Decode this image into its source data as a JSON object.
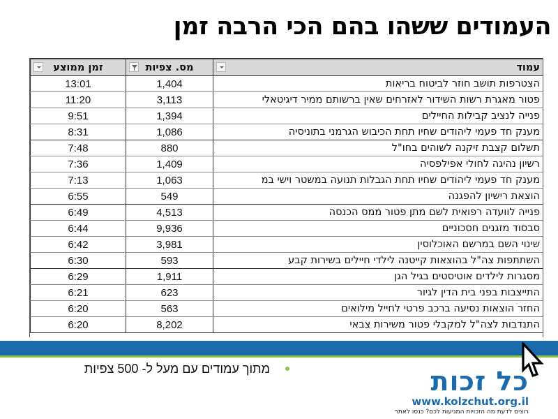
{
  "slide": {
    "title": "העמודים ששהו בהם הכי הרבה זמן"
  },
  "table": {
    "headers": {
      "page": "עמוד",
      "views": "מס. צפיות",
      "avg_time": "זמן ממוצע"
    },
    "rows": [
      {
        "page": "הצטרפות תושב חוזר לביטוח בריאות",
        "views": "1,404",
        "avg_time": "13:01"
      },
      {
        "page": "פטור מאגרת רשות השידור לאזרחים שאין ברשותם ממיר דיגיטאלי",
        "views": "3,113",
        "avg_time": "11:20"
      },
      {
        "page": "פנייה לנציב קבילות החיילים",
        "views": "1,394",
        "avg_time": "9:51"
      },
      {
        "page": "מענק חד פעמי ליהודים שחיו תחת הכיבוש הגרמני בתוניסיה",
        "views": "1,086",
        "avg_time": "8:31"
      },
      {
        "page": "תשלום קצבת זיקנה לשוהים בחו\"ל",
        "views": "880",
        "avg_time": "7:48"
      },
      {
        "page": "רשיון נהיגה לחולי אפילפסיה",
        "views": "1,409",
        "avg_time": "7:36"
      },
      {
        "page": "מענק חד פעמי ליהודים שחיו תחת הגבלות תנועה במשטר וישי במ",
        "views": "1,063",
        "avg_time": "7:13"
      },
      {
        "page": "הוצאת רישיון להפגנה",
        "views": "549",
        "avg_time": "6:55"
      },
      {
        "page": "פנייה לוועדה רפואית לשם מתן פטור ממס הכנסה",
        "views": "4,513",
        "avg_time": "6:49"
      },
      {
        "page": "סבסוד מזגנים חסכוניים",
        "views": "9,936",
        "avg_time": "6:44"
      },
      {
        "page": "שינוי השם במרשם האוכלוסין",
        "views": "3,981",
        "avg_time": "6:42"
      },
      {
        "page": "השתתפות צה\"ל בהוצאות קייטנה לילדי חיילים בשירות קבע",
        "views": "593",
        "avg_time": "6:30"
      },
      {
        "page": "מסגרות לילדים אוטיסטים בגיל הגן",
        "views": "1,911",
        "avg_time": "6:29"
      },
      {
        "page": "התייצבות בפני בית הדין לגיור",
        "views": "623",
        "avg_time": "6:21"
      },
      {
        "page": "החזר הוצאות נסיעה ברכב פרטי לחייל מילואים",
        "views": "563",
        "avg_time": "6:20"
      },
      {
        "page": "התנדבות לצה\"ל למקבלי פטור משירות צבאי",
        "views": "8,202",
        "avg_time": "6:20"
      }
    ]
  },
  "footer": {
    "bullet_text": "מתוך עמודים עם מעל ל- 500 צפיות",
    "logo_name": "כל זכות",
    "logo_url": "www.kolzchut.org.il",
    "logo_tagline": "רוצים לדעת מה הזכויות המגיעות לכם? כנסו לאתר"
  },
  "colors": {
    "band_blue": "#1a6aac",
    "accent_green": "#8cc63f",
    "header_gray": "#d9d9d9"
  },
  "icons": {
    "dropdown": "chevron-down-icon",
    "filter": "filter-icon",
    "cursor": "mouse-pointer-icon"
  }
}
